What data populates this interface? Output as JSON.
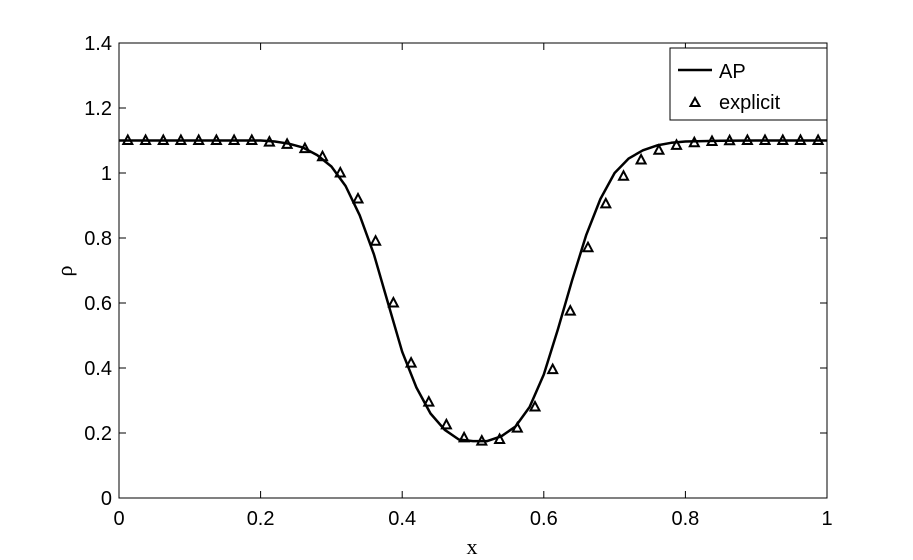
{
  "chart_data": {
    "type": "line",
    "xlabel": "x",
    "ylabel": "ρ",
    "xlim": [
      0,
      1
    ],
    "ylim": [
      0,
      1.4
    ],
    "x_ticks": [
      0,
      0.2,
      0.4,
      0.6,
      0.8,
      1
    ],
    "x_tick_labels": [
      "0",
      "0.2",
      "0.4",
      "0.6",
      "0.8",
      "1"
    ],
    "y_ticks": [
      0,
      0.2,
      0.4,
      0.6,
      0.8,
      1,
      1.2,
      1.4
    ],
    "y_tick_labels": [
      "0",
      "0.2",
      "0.4",
      "0.6",
      "0.8",
      "1",
      "1.2",
      "1.4"
    ],
    "grid": false,
    "legend_position": "top-right",
    "line_color": "#000000",
    "series": [
      {
        "name": "AP",
        "style": "solid-line",
        "x": [
          0.0,
          0.05,
          0.1,
          0.15,
          0.2,
          0.22,
          0.24,
          0.26,
          0.28,
          0.3,
          0.32,
          0.34,
          0.36,
          0.38,
          0.4,
          0.42,
          0.44,
          0.46,
          0.48,
          0.5,
          0.52,
          0.54,
          0.56,
          0.58,
          0.6,
          0.62,
          0.64,
          0.66,
          0.68,
          0.7,
          0.72,
          0.74,
          0.76,
          0.78,
          0.8,
          0.85,
          0.9,
          0.95,
          1.0
        ],
        "y": [
          1.1,
          1.1,
          1.1,
          1.1,
          1.1,
          1.097,
          1.09,
          1.078,
          1.055,
          1.02,
          0.96,
          0.87,
          0.75,
          0.6,
          0.45,
          0.34,
          0.26,
          0.21,
          0.18,
          0.175,
          0.175,
          0.19,
          0.22,
          0.28,
          0.38,
          0.52,
          0.67,
          0.81,
          0.92,
          1.0,
          1.045,
          1.07,
          1.085,
          1.093,
          1.097,
          1.099,
          1.1,
          1.1,
          1.1
        ]
      },
      {
        "name": "explicit",
        "style": "triangle-markers",
        "x": [
          0.0125,
          0.0375,
          0.0625,
          0.0875,
          0.1125,
          0.1375,
          0.1625,
          0.1875,
          0.2125,
          0.2375,
          0.2625,
          0.2875,
          0.3125,
          0.3375,
          0.3625,
          0.3875,
          0.4125,
          0.4375,
          0.4625,
          0.4875,
          0.5125,
          0.5375,
          0.5625,
          0.5875,
          0.6125,
          0.6375,
          0.6625,
          0.6875,
          0.7125,
          0.7375,
          0.7625,
          0.7875,
          0.8125,
          0.8375,
          0.8625,
          0.8875,
          0.9125,
          0.9375,
          0.9625,
          0.9875
        ],
        "y": [
          1.1,
          1.1,
          1.1,
          1.1,
          1.1,
          1.1,
          1.1,
          1.1,
          1.095,
          1.088,
          1.075,
          1.05,
          1.0,
          0.92,
          0.79,
          0.6,
          0.415,
          0.295,
          0.225,
          0.185,
          0.175,
          0.18,
          0.215,
          0.28,
          0.395,
          0.575,
          0.77,
          0.905,
          0.99,
          1.04,
          1.07,
          1.085,
          1.093,
          1.097,
          1.099,
          1.1,
          1.1,
          1.1,
          1.1,
          1.1
        ]
      }
    ]
  }
}
